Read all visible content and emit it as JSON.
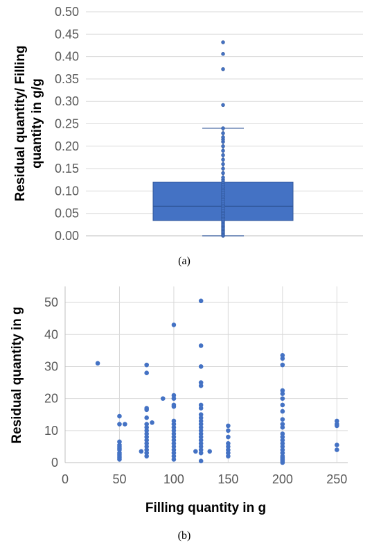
{
  "chart_data": [
    {
      "type": "box",
      "ylabel": "Residual quantity/ Filling quantity in g/g",
      "ylabel_lines": [
        "Residual quantity/ Filling",
        "quantity in g/g"
      ],
      "caption": "(a)",
      "ylim": [
        0,
        0.5
      ],
      "yticks": [
        "0.00",
        "0.05",
        "0.10",
        "0.15",
        "0.20",
        "0.25",
        "0.30",
        "0.35",
        "0.40",
        "0.45",
        "0.50"
      ],
      "grid": true,
      "box": {
        "min": 0.0,
        "q1": 0.034,
        "median": 0.066,
        "q3": 0.12,
        "whisker_high": 0.24
      },
      "points": [
        0.0,
        0.003,
        0.006,
        0.009,
        0.012,
        0.015,
        0.018,
        0.021,
        0.024,
        0.027,
        0.031,
        0.034,
        0.037,
        0.041,
        0.044,
        0.048,
        0.051,
        0.055,
        0.058,
        0.062,
        0.066,
        0.07,
        0.074,
        0.078,
        0.082,
        0.086,
        0.09,
        0.094,
        0.098,
        0.102,
        0.106,
        0.11,
        0.115,
        0.12,
        0.125,
        0.13,
        0.14,
        0.15,
        0.16,
        0.17,
        0.18,
        0.19,
        0.2,
        0.21,
        0.215,
        0.22,
        0.229,
        0.24,
        0.292,
        0.372,
        0.406,
        0.432
      ],
      "color": "#4472c4"
    },
    {
      "type": "scatter",
      "xlabel": "Filling quantity in g",
      "ylabel": "Residual quantity in g",
      "caption": "(b)",
      "xlim": [
        0,
        260
      ],
      "ylim": [
        0,
        55
      ],
      "xticks": [
        "0",
        "50",
        "100",
        "150",
        "200",
        "250"
      ],
      "yticks": [
        "0",
        "10",
        "20",
        "30",
        "40",
        "50"
      ],
      "grid": true,
      "color": "#4472c4",
      "points": [
        [
          30,
          31
        ],
        [
          50,
          14.5
        ],
        [
          50,
          12
        ],
        [
          50,
          6.5
        ],
        [
          50,
          5.5
        ],
        [
          50,
          5
        ],
        [
          50,
          4.5
        ],
        [
          50,
          4
        ],
        [
          50,
          3
        ],
        [
          50,
          2.5
        ],
        [
          50,
          2
        ],
        [
          50,
          1.5
        ],
        [
          50,
          1
        ],
        [
          55,
          12
        ],
        [
          70,
          3.5
        ],
        [
          75,
          30.5
        ],
        [
          75,
          28
        ],
        [
          75,
          17
        ],
        [
          75,
          16.5
        ],
        [
          75,
          14
        ],
        [
          75,
          12
        ],
        [
          75,
          11
        ],
        [
          75,
          10
        ],
        [
          75,
          9
        ],
        [
          75,
          8
        ],
        [
          75,
          7
        ],
        [
          75,
          6
        ],
        [
          75,
          5
        ],
        [
          75,
          4
        ],
        [
          75,
          3
        ],
        [
          75,
          2
        ],
        [
          80,
          12.5
        ],
        [
          90,
          20
        ],
        [
          100,
          43
        ],
        [
          100,
          21
        ],
        [
          100,
          20
        ],
        [
          100,
          18
        ],
        [
          100,
          17.5
        ],
        [
          100,
          13
        ],
        [
          100,
          12
        ],
        [
          100,
          11
        ],
        [
          100,
          10
        ],
        [
          100,
          9
        ],
        [
          100,
          8
        ],
        [
          100,
          7
        ],
        [
          100,
          6
        ],
        [
          100,
          5
        ],
        [
          100,
          4
        ],
        [
          100,
          3
        ],
        [
          100,
          2
        ],
        [
          100,
          1
        ],
        [
          120,
          3.5
        ],
        [
          125,
          50.5
        ],
        [
          125,
          36.5
        ],
        [
          125,
          30
        ],
        [
          125,
          25
        ],
        [
          125,
          24
        ],
        [
          125,
          18
        ],
        [
          125,
          17
        ],
        [
          125,
          15
        ],
        [
          125,
          14
        ],
        [
          125,
          13
        ],
        [
          125,
          12
        ],
        [
          125,
          11
        ],
        [
          125,
          10
        ],
        [
          125,
          9
        ],
        [
          125,
          8
        ],
        [
          125,
          7
        ],
        [
          125,
          6
        ],
        [
          125,
          5
        ],
        [
          125,
          4
        ],
        [
          125,
          3
        ],
        [
          125,
          0.5
        ],
        [
          133,
          3.5
        ],
        [
          150,
          11.5
        ],
        [
          150,
          10
        ],
        [
          150,
          8
        ],
        [
          150,
          6
        ],
        [
          150,
          5
        ],
        [
          150,
          4
        ],
        [
          150,
          3
        ],
        [
          150,
          2
        ],
        [
          200,
          33.5
        ],
        [
          200,
          32.5
        ],
        [
          200,
          30.5
        ],
        [
          200,
          22.5
        ],
        [
          200,
          21.5
        ],
        [
          200,
          20
        ],
        [
          200,
          18
        ],
        [
          200,
          16
        ],
        [
          200,
          13.5
        ],
        [
          200,
          12
        ],
        [
          200,
          11
        ],
        [
          200,
          9
        ],
        [
          200,
          8
        ],
        [
          200,
          7
        ],
        [
          200,
          6
        ],
        [
          200,
          5
        ],
        [
          200,
          4
        ],
        [
          200,
          3
        ],
        [
          200,
          2
        ],
        [
          200,
          1.5
        ],
        [
          200,
          1
        ],
        [
          200,
          0.5
        ],
        [
          200,
          0
        ],
        [
          250,
          13
        ],
        [
          250,
          12
        ],
        [
          250,
          11.5
        ],
        [
          250,
          5.5
        ],
        [
          250,
          4
        ]
      ]
    }
  ]
}
